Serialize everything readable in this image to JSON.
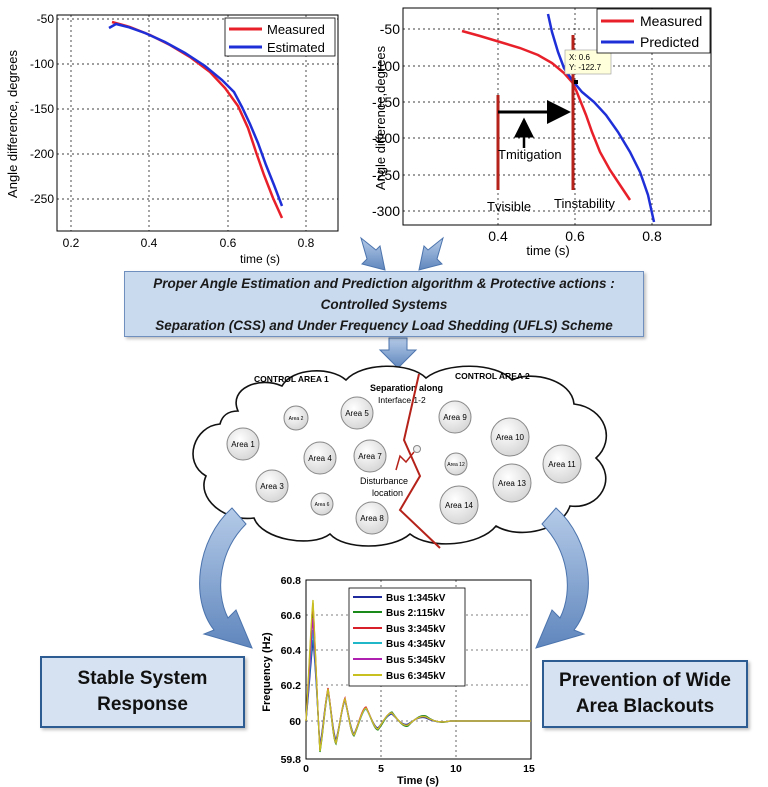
{
  "top_left_chart": {
    "ylabel": "Angle difference, degrees",
    "xlabel": "time (s)",
    "legend": [
      "Measured",
      "Estimated"
    ],
    "xticks": [
      "0.2",
      "0.4",
      "0.6",
      "0.8"
    ],
    "yticks": [
      "-50",
      "-100",
      "-150",
      "-200",
      "-250"
    ],
    "colors": {
      "measured": "#e8202a",
      "estimated": "#1f2fd8"
    }
  },
  "top_right_chart": {
    "ylabel": "Angle difference,degrees",
    "xlabel": "time (s)",
    "legend": [
      "Measured",
      "Predicted"
    ],
    "xticks": [
      "0.4",
      "0.6",
      "0.8"
    ],
    "yticks": [
      "-50",
      "-100",
      "-150",
      "-200",
      "-250",
      "-300"
    ],
    "datatip": {
      "x_label": "X: 0.6",
      "y_label": "Y: -122.7"
    },
    "annotations": {
      "mitigation": "Tmitigation",
      "visible": "Tvisible",
      "instability": "Tinstability"
    }
  },
  "banner": {
    "line1": "Proper Angle Estimation and Prediction algorithm & Protective actions : Controlled Systems",
    "line2": "Separation (CSS) and Under Frequency Load Shedding (UFLS) Scheme"
  },
  "network": {
    "control_area_1": "CONTROL AREA 1",
    "control_area_2": "CONTROL AREA 2",
    "separation_label_1": "Separation along",
    "separation_label_2": "Interface 1-2",
    "disturbance_label_1": "Disturbance",
    "disturbance_label_2": "location",
    "areas": [
      "Area 1",
      "Area 2",
      "Area 3",
      "Area 4",
      "Area 5",
      "Area 6",
      "Area 7",
      "Area 8",
      "Area 9",
      "Area 10",
      "Area 11",
      "Area 12",
      "Area 13",
      "Area 14"
    ]
  },
  "frequency_chart": {
    "ylabel": "Frequency (Hz)",
    "xlabel": "Time (s)",
    "yticks": [
      "60.8",
      "60.6",
      "60.4",
      "60.2",
      "60",
      "59.8"
    ],
    "xticks": [
      "0",
      "5",
      "10",
      "15"
    ],
    "legend": [
      "Bus 1:345kV",
      "Bus 2:115kV",
      "Bus 3:345kV",
      "Bus 4:345kV",
      "Bus 5:345kV",
      "Bus 6:345kV"
    ],
    "legend_colors": [
      "#1f2a9c",
      "#1a8a1a",
      "#d8202a",
      "#20b8c8",
      "#b020b0",
      "#c8c020"
    ]
  },
  "outcomes": {
    "left_1": "Stable System",
    "left_2": "Response",
    "right_1": "Prevention of Wide",
    "right_2": "Area Blackouts"
  }
}
